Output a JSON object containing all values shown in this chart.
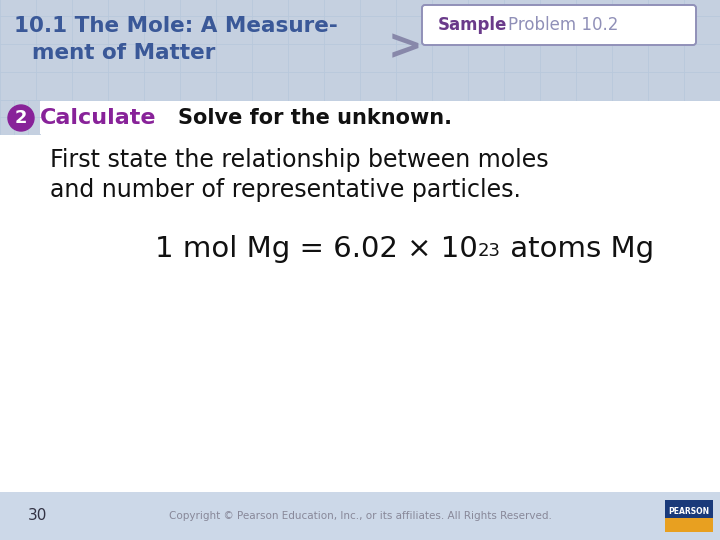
{
  "bg_color": "#ffffff",
  "header_bg": "#c5d0e0",
  "grid_color": "#b8c8dc",
  "title_text1": "10.1 The Mole: A Measure-",
  "title_text2": "ment of Matter",
  "title_color": "#3a5898",
  "sample_label": "Sample",
  "sample_label_color": "#6a3a8a",
  "problem_text": "Problem 10.2",
  "problem_text_color": "#9090b8",
  "arrow_color": "#8888aa",
  "step_number": "2",
  "step_circle_color": "#882299",
  "step_label": "Calculate",
  "step_label_color": "#882299",
  "step_desc": "Solve for the unknown.",
  "step_desc_color": "#111111",
  "body_text1": "First state the relationship between moles",
  "body_text2": "and number of representative particles.",
  "body_color": "#111111",
  "formula_base": "1 mol Mg = 6.02 × 10",
  "formula_exp": "23",
  "formula_suffix": " atoms Mg",
  "formula_color": "#111111",
  "page_number": "30",
  "copyright_text": "Copyright © Pearson Education, Inc., or its affiliates. All Rights Reserved.",
  "footer_color": "#888899",
  "footer_bg": "#ccd8e8",
  "pearson_blue": "#1a3a7a",
  "pearson_yellow": "#e8a020"
}
